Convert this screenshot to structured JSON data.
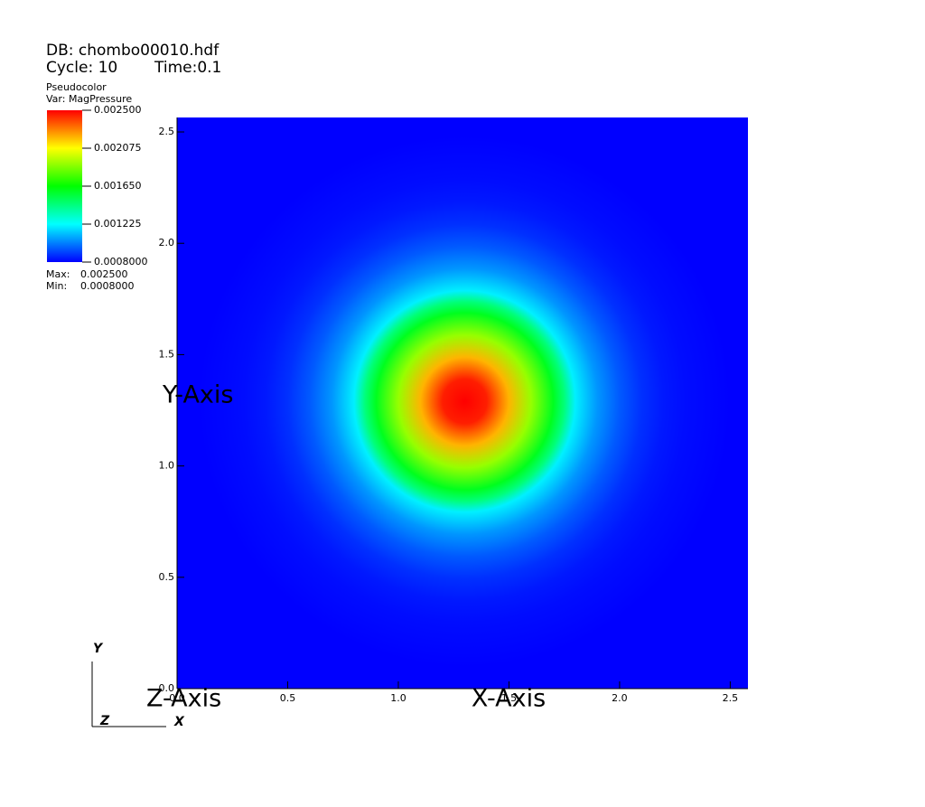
{
  "chart_data": {
    "type": "pseudocolor",
    "db": "DB: chombo00010.hdf",
    "cycle": "Cycle: 10",
    "time": "Time:0.1",
    "plot_name": "Pseudocolor",
    "variable": "Var: MagPressure",
    "x_label": "X-Axis",
    "y_label": "Y-Axis",
    "z_label": "Z-Axis",
    "triad": {
      "x": "X",
      "y": "Y",
      "z": "Z"
    },
    "xlim": [
      0,
      2.58
    ],
    "ylim": [
      0,
      2.565
    ],
    "xticks": [
      {
        "value": 0,
        "label": "0.0"
      },
      0.5,
      {
        "value": 1,
        "label": "1.0"
      },
      1.5,
      {
        "value": 2,
        "label": "2.0"
      },
      2.5
    ],
    "yticks": [
      {
        "value": 0,
        "label": "0.0"
      },
      0.5,
      {
        "value": 1,
        "label": "1.0"
      },
      1.5,
      {
        "value": 2,
        "label": "2.0"
      },
      2.5
    ],
    "colormap": [
      "#0000ff",
      "#00ffff",
      "#00ff00",
      "#ffff00",
      "#ff0000"
    ],
    "color_ticks": [
      {
        "value": 0.0025,
        "label": "0.002500"
      },
      {
        "value": 0.002075,
        "label": "0.002075"
      },
      {
        "value": 0.00165,
        "label": "0.001650"
      },
      {
        "value": 0.001225,
        "label": "0.001225"
      },
      {
        "value": 0.0008,
        "label": "0.0008000"
      }
    ],
    "max_label": "Max:",
    "max": {
      "value": 0.0025,
      "label": "0.002500"
    },
    "min_label": "Min:",
    "min": {
      "value": 0.0008,
      "label": "0.0008000"
    },
    "center": {
      "x": 1.3,
      "y": 1.29
    },
    "radial_profile": {
      "r": [
        0,
        0.1,
        0.2,
        0.3,
        0.4,
        0.45,
        0.5,
        0.6,
        0.7,
        0.8,
        0.9,
        1.0,
        1.2
      ],
      "values": [
        0.0025,
        0.00245,
        0.0022,
        0.0019,
        0.0016,
        0.00145,
        0.0012,
        0.00105,
        0.00095,
        0.00088,
        0.00084,
        0.00082,
        0.0008
      ]
    }
  }
}
